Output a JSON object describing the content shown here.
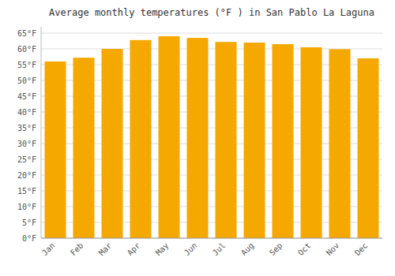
{
  "chart_data": {
    "type": "bar",
    "title": "Average monthly temperatures (°F ) in San Pablo La Laguna",
    "categories": [
      "Jan",
      "Feb",
      "Mar",
      "Apr",
      "May",
      "Jun",
      "Jul",
      "Aug",
      "Sep",
      "Oct",
      "Nov",
      "Dec"
    ],
    "values": [
      56.0,
      57.2,
      60.0,
      62.8,
      64.0,
      63.5,
      62.2,
      62.0,
      61.5,
      60.5,
      59.9,
      57.0
    ],
    "color": "#F5A800",
    "ylim": [
      0,
      67
    ],
    "yticks": [
      {
        "value": 0,
        "label": "0°F"
      },
      {
        "value": 5,
        "label": "5°F"
      },
      {
        "value": 10,
        "label": "10°F"
      },
      {
        "value": 15,
        "label": "15°F"
      },
      {
        "value": 20,
        "label": "20°F"
      },
      {
        "value": 25,
        "label": "25°F"
      },
      {
        "value": 30,
        "label": "30°F"
      },
      {
        "value": 35,
        "label": "35°F"
      },
      {
        "value": 40,
        "label": "40°F"
      },
      {
        "value": 45,
        "label": "45°F"
      },
      {
        "value": 50,
        "label": "50°F"
      },
      {
        "value": 55,
        "label": "55°F"
      },
      {
        "value": 60,
        "label": "60°F"
      },
      {
        "value": 65,
        "label": "65°F"
      }
    ],
    "grid": true
  }
}
